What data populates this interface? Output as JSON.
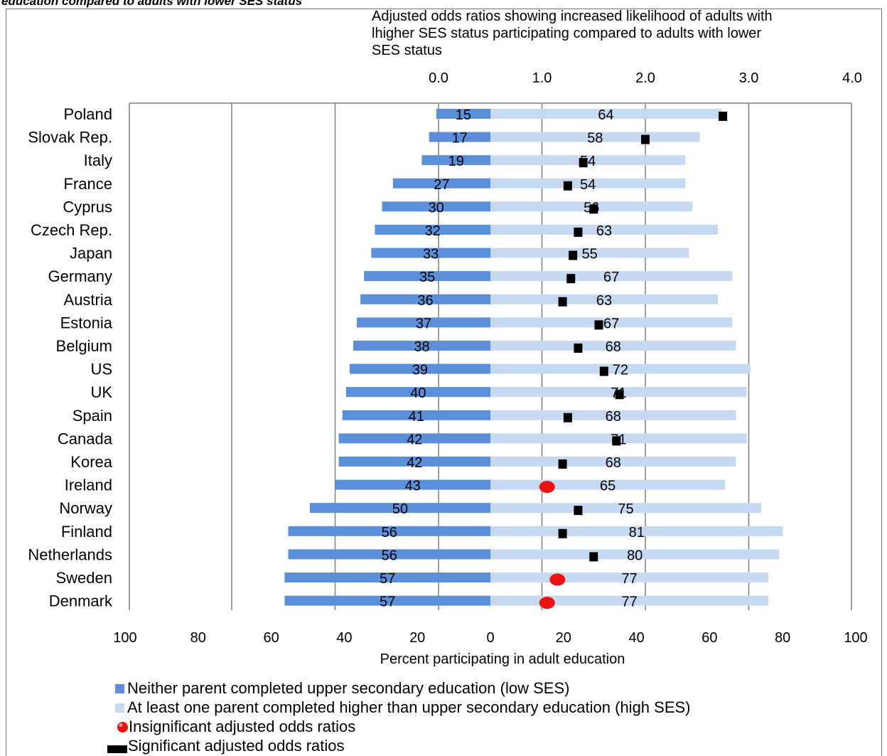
{
  "header": {
    "title": "education compared to adults with lower SES status"
  },
  "colors": {
    "low_ses": "#5b8fd9",
    "high_ses": "#c6d9f1",
    "insignificant": "#ee1111",
    "significant": "#000000",
    "grid": "#808080"
  },
  "chart_data": {
    "type": "bar",
    "title": "",
    "top_axis": {
      "label": "Adjusted odds ratios showing increased likelihood of adults with lhigher SES status participating compared to adults with lower SES status",
      "label_lines": [
        "Adjusted odds ratios showing increased likelihood of adults with",
        "lhigher SES status participating compared to adults with lower",
        "SES status"
      ],
      "ticks": [
        "0.0",
        "1.0",
        "2.0",
        "3.0",
        "4.0"
      ],
      "range": [
        0,
        4
      ]
    },
    "bottom_axis": {
      "label": "Percent participating in adult education",
      "ticks": [
        "100",
        "80",
        "60",
        "40",
        "20",
        "0",
        "20",
        "40",
        "60",
        "80",
        "100"
      ]
    },
    "categories": [
      "Poland",
      "Slovak Rep.",
      "Italy",
      "France",
      "Cyprus",
      "Czech Rep.",
      "Japan",
      "Germany",
      "Austria",
      "Estonia",
      "Belgium",
      "US",
      "UK",
      "Spain",
      "Canada",
      "Korea",
      "Ireland",
      "Norway",
      "Finland",
      "Netherlands",
      "Sweden",
      "Denmark"
    ],
    "series": [
      {
        "name": "Neither parent completed upper secondary education (low SES)",
        "values": [
          15,
          17,
          19,
          27,
          30,
          32,
          33,
          35,
          36,
          37,
          38,
          39,
          40,
          41,
          42,
          42,
          43,
          50,
          56,
          56,
          57,
          57
        ]
      },
      {
        "name": "At least one parent completed higher than upper secondary education (high SES)",
        "values": [
          64,
          58,
          54,
          54,
          56,
          63,
          55,
          67,
          63,
          67,
          68,
          72,
          71,
          68,
          71,
          68,
          65,
          75,
          81,
          80,
          77,
          77
        ]
      }
    ],
    "odds_ratios": [
      2.75,
      2.0,
      1.4,
      1.25,
      1.5,
      1.35,
      1.3,
      1.28,
      1.2,
      1.55,
      1.35,
      1.6,
      1.75,
      1.25,
      1.72,
      1.2,
      1.05,
      1.35,
      1.2,
      1.5,
      1.15,
      1.05
    ],
    "odds_significant": [
      true,
      true,
      true,
      true,
      true,
      true,
      true,
      true,
      true,
      true,
      true,
      true,
      true,
      true,
      true,
      true,
      false,
      true,
      true,
      true,
      false,
      false
    ],
    "grid": true
  },
  "legend": {
    "low_ses": "Neither parent completed upper secondary education (low SES)",
    "high_ses": "At least one parent completed higher than upper secondary education (high SES)",
    "insignificant": "Insignificant adjusted odds ratios",
    "significant": "Significant adjusted odds ratios"
  }
}
